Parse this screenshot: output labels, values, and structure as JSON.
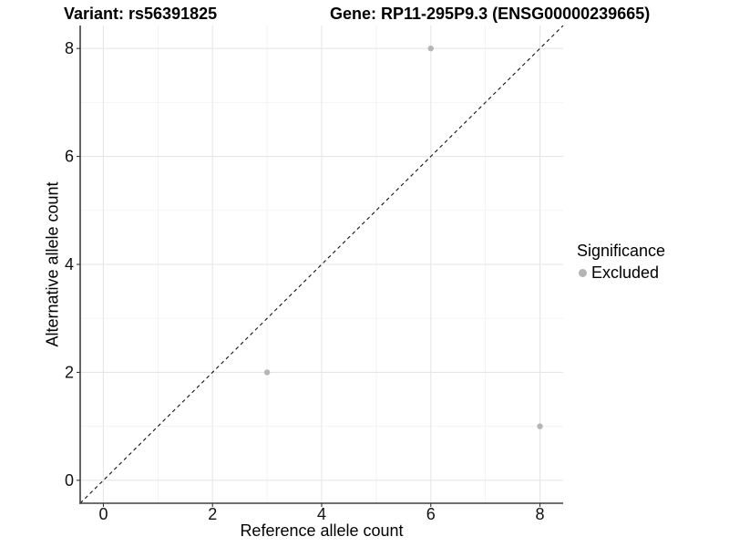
{
  "chart_data": {
    "type": "scatter",
    "title_left": "Variant: rs56391825",
    "title_right": "Gene: RP11-295P9.3 (ENSG00000239665)",
    "xlabel": "Reference allele count",
    "ylabel": "Alternative allele count",
    "xlim": [
      -0.425,
      8.425
    ],
    "ylim": [
      -0.425,
      8.425
    ],
    "x_major_ticks": [
      0,
      2,
      4,
      6,
      8
    ],
    "x_minor_ticks": [
      1,
      3,
      5,
      7
    ],
    "y_major_ticks": [
      0,
      2,
      4,
      6,
      8
    ],
    "y_minor_ticks": [
      1,
      3,
      5,
      7
    ],
    "grid": "major+minor",
    "identity_line": {
      "slope": 1,
      "intercept": 0,
      "linetype": "dashed",
      "color": "#111111"
    },
    "series": [
      {
        "name": "Excluded",
        "color": "#b5b5b5",
        "points": [
          [
            3,
            2
          ],
          [
            6,
            8
          ],
          [
            8,
            1
          ]
        ]
      }
    ],
    "legend": {
      "title": "Significance",
      "position": "right",
      "items": [
        {
          "label": "Excluded",
          "color": "#b5b5b5"
        }
      ]
    },
    "style": {
      "panel_background": "#ffffff",
      "axis_line_color": "#404040",
      "tick_color": "#333333",
      "grid_major_color": "#e6e6e6",
      "grid_minor_color": "#f2f2f2",
      "text_color": "#000000"
    }
  }
}
